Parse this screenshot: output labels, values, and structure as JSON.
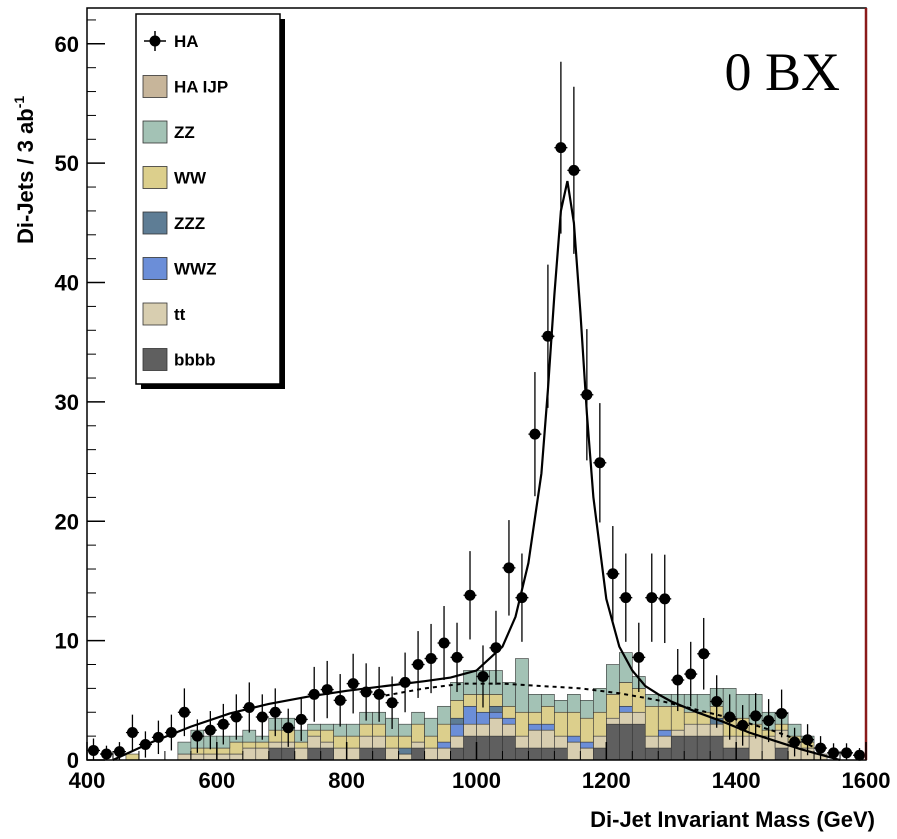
{
  "chart_data": {
    "type": "bar",
    "xlabel": "Di-Jet Invariant Mass (GeV)",
    "ylabel": "Di-Jets / 3 ab",
    "ylabel_sup": "-1",
    "xlim": [
      400,
      1600
    ],
    "ylim": [
      0,
      63
    ],
    "x_ticks": [
      400,
      600,
      800,
      1000,
      1200,
      1400,
      1600
    ],
    "y_ticks": [
      0,
      10,
      20,
      30,
      40,
      50,
      60
    ],
    "annotation": "0 BX",
    "legend_position": "top-left",
    "bin_edges_start": 400,
    "bin_width": 20,
    "stack_series": [
      {
        "name": "bbbb",
        "color": "#5f5f5f",
        "values": [
          0,
          0,
          0,
          0,
          0,
          0,
          0,
          0,
          0,
          0,
          0,
          0,
          0,
          0,
          1,
          1,
          0,
          1,
          1,
          0,
          0,
          1,
          1,
          0,
          0,
          1,
          0,
          0,
          1,
          2,
          2,
          2,
          2,
          1,
          1,
          1,
          1,
          0,
          0,
          1,
          3,
          3,
          3,
          1,
          1,
          2,
          2,
          2,
          2,
          1,
          1,
          0,
          0,
          1,
          0,
          0,
          0,
          0,
          0,
          0
        ]
      },
      {
        "name": "tt",
        "color": "#d8ceb0",
        "values": [
          0,
          0,
          0,
          0,
          0,
          0,
          0,
          0.5,
          0.5,
          0.5,
          0.5,
          0.5,
          1,
          1,
          0.5,
          0.5,
          1,
          1,
          0.5,
          1,
          1,
          1,
          1,
          1,
          0.5,
          0.5,
          1,
          1,
          1,
          1,
          1,
          1.5,
          1,
          1,
          1.5,
          1.5,
          1,
          1.5,
          1,
          1,
          0.5,
          1,
          1,
          1,
          1,
          0.5,
          1,
          1,
          1,
          1,
          1,
          2,
          2,
          1.5,
          1.5,
          1,
          0.5,
          0,
          0,
          0
        ]
      },
      {
        "name": "WWZ",
        "color": "#6b8ed8",
        "values": [
          0,
          0,
          0,
          0,
          0,
          0,
          0,
          0,
          0,
          0,
          0,
          0,
          0,
          0,
          0,
          0,
          0,
          0,
          0,
          0,
          0,
          0,
          0,
          0,
          0,
          0,
          0,
          0.5,
          1,
          1.5,
          1,
          0.5,
          0.5,
          0,
          0.5,
          0.5,
          0,
          0.5,
          0.5,
          0,
          0,
          0.5,
          0,
          0,
          0.5,
          0,
          0,
          0,
          0,
          0,
          0,
          0,
          0,
          0,
          0,
          0,
          0,
          0,
          0,
          0
        ]
      },
      {
        "name": "ZZZ",
        "color": "#5e7d95",
        "values": [
          0,
          0,
          0,
          0,
          0,
          0,
          0,
          0,
          0,
          0,
          0,
          0,
          0,
          0,
          0,
          0,
          0,
          0,
          0,
          0,
          0,
          0,
          0,
          0,
          0.5,
          0,
          0,
          0,
          0.5,
          0,
          0,
          0.5,
          0,
          0,
          0,
          0,
          0,
          0,
          0,
          0,
          0,
          0,
          0,
          0,
          0,
          0,
          0,
          0,
          0.5,
          0,
          0,
          0,
          0,
          0,
          0,
          0,
          0,
          0,
          0,
          0
        ]
      },
      {
        "name": "WW",
        "color": "#dccf8c",
        "values": [
          0,
          0,
          0,
          0.5,
          0,
          0,
          0,
          0,
          0.5,
          0.5,
          0.5,
          1,
          0.5,
          0.5,
          1,
          1,
          0.5,
          0.5,
          1,
          1,
          1,
          1,
          1,
          1,
          1,
          1.5,
          1,
          1.5,
          1.5,
          1,
          1.5,
          1,
          1,
          2,
          1,
          1.5,
          2,
          2,
          2,
          2,
          2,
          2,
          2,
          2.5,
          2,
          2,
          1,
          1,
          1,
          1.5,
          1.5,
          1,
          0.5,
          0.5,
          0.5,
          0.5,
          0,
          0,
          0,
          0
        ]
      },
      {
        "name": "ZZ",
        "color": "#a3c2b5",
        "values": [
          0,
          0,
          0,
          0,
          0,
          0,
          0,
          1,
          1.5,
          1,
          1,
          0.5,
          1,
          0.5,
          1,
          1,
          1,
          0.5,
          0.5,
          1,
          1,
          1,
          1,
          1.5,
          1,
          1,
          1.5,
          1.5,
          1.5,
          2,
          2,
          2,
          2,
          4.5,
          1.5,
          1,
          1,
          1.5,
          1.5,
          2,
          2.5,
          2.5,
          1,
          1,
          1,
          1,
          1.5,
          1.5,
          1.5,
          2.5,
          2,
          2.5,
          1.5,
          1,
          1,
          0.5,
          0,
          0,
          0,
          0
        ]
      },
      {
        "name": "HA IJP",
        "color": "#c7b59a",
        "values": [
          0,
          0,
          0,
          0,
          0,
          0,
          0,
          0,
          0,
          0,
          0,
          0,
          0,
          0,
          0,
          0,
          0,
          0,
          0,
          0,
          0,
          0,
          0,
          0,
          0,
          0,
          0,
          0,
          0,
          0,
          0,
          0,
          0,
          0,
          0,
          0,
          0,
          0,
          0,
          0,
          0,
          0,
          0,
          0,
          0,
          0,
          0,
          0,
          0,
          0,
          0,
          0,
          0,
          0,
          0,
          0,
          0,
          0,
          0,
          0
        ]
      }
    ],
    "data_points": {
      "name": "HA",
      "x": [
        410,
        430,
        450,
        470,
        490,
        510,
        530,
        550,
        570,
        590,
        610,
        630,
        650,
        670,
        690,
        710,
        730,
        750,
        770,
        790,
        810,
        830,
        850,
        870,
        890,
        910,
        930,
        950,
        970,
        990,
        1010,
        1030,
        1050,
        1070,
        1090,
        1110,
        1130,
        1150,
        1170,
        1190,
        1210,
        1230,
        1250,
        1270,
        1290,
        1310,
        1330,
        1350,
        1370,
        1390,
        1410,
        1430,
        1450,
        1470,
        1490,
        1510,
        1530,
        1550,
        1570,
        1590
      ],
      "y": [
        0.8,
        0.5,
        0.7,
        2.3,
        1.3,
        1.9,
        2.3,
        4.0,
        2.0,
        2.5,
        3.0,
        3.6,
        4.4,
        3.6,
        4.0,
        2.7,
        3.4,
        5.5,
        5.9,
        5.0,
        6.4,
        5.7,
        5.5,
        4.8,
        6.5,
        8.0,
        8.5,
        9.8,
        8.6,
        13.8,
        7.0,
        9.4,
        16.1,
        13.6,
        27.3,
        35.5,
        51.3,
        49.4,
        30.6,
        24.9,
        15.6,
        13.6,
        8.6,
        13.6,
        13.5,
        6.7,
        7.2,
        8.9,
        4.9,
        3.6,
        2.9,
        3.7,
        3.3,
        3.9,
        1.5,
        1.7,
        1.0,
        0.6,
        0.6,
        0.4
      ],
      "err": [
        1.0,
        0.7,
        0.8,
        1.5,
        1.1,
        1.4,
        1.5,
        2.0,
        1.4,
        1.6,
        1.7,
        1.9,
        2.1,
        1.9,
        2.0,
        1.6,
        1.8,
        2.3,
        2.4,
        2.2,
        2.5,
        2.4,
        2.3,
        2.2,
        2.5,
        2.8,
        2.9,
        3.1,
        2.9,
        3.7,
        2.6,
        3.1,
        4.0,
        3.7,
        5.2,
        6.0,
        7.2,
        7.0,
        5.5,
        5.0,
        4.0,
        3.7,
        2.9,
        3.7,
        3.7,
        2.6,
        2.7,
        3.0,
        2.2,
        1.9,
        1.7,
        1.9,
        1.8,
        2.0,
        1.2,
        1.3,
        1.0,
        0.8,
        0.8,
        0.6
      ]
    },
    "fit_curves": [
      {
        "name": "signal+background fit",
        "style": "solid",
        "x": [
          440,
          500,
          560,
          620,
          680,
          740,
          800,
          860,
          920,
          960,
          1000,
          1040,
          1060,
          1080,
          1100,
          1110,
          1120,
          1130,
          1140,
          1150,
          1160,
          1170,
          1180,
          1200,
          1220,
          1240,
          1260,
          1280,
          1300,
          1340,
          1380,
          1420,
          1460,
          1500,
          1540,
          1560
        ],
        "y": [
          0,
          1.5,
          2.8,
          3.9,
          4.7,
          5.3,
          5.8,
          6.2,
          6.6,
          6.9,
          7.5,
          9.5,
          12.0,
          16.5,
          24.0,
          31.0,
          39.0,
          46.0,
          48.5,
          45.0,
          37.5,
          29.0,
          22.0,
          13.5,
          9.5,
          7.5,
          6.2,
          5.5,
          4.9,
          4.0,
          3.2,
          2.3,
          1.6,
          0.9,
          0.3,
          0
        ]
      },
      {
        "name": "background fit",
        "style": "dashed",
        "x": [
          860,
          920,
          980,
          1040,
          1100,
          1160,
          1220,
          1280,
          1340,
          1400,
          1460,
          1500,
          1530
        ],
        "y": [
          5.4,
          6.0,
          6.4,
          6.4,
          6.2,
          6.0,
          5.6,
          5.0,
          4.2,
          3.4,
          2.4,
          1.6,
          0.8
        ]
      }
    ]
  }
}
